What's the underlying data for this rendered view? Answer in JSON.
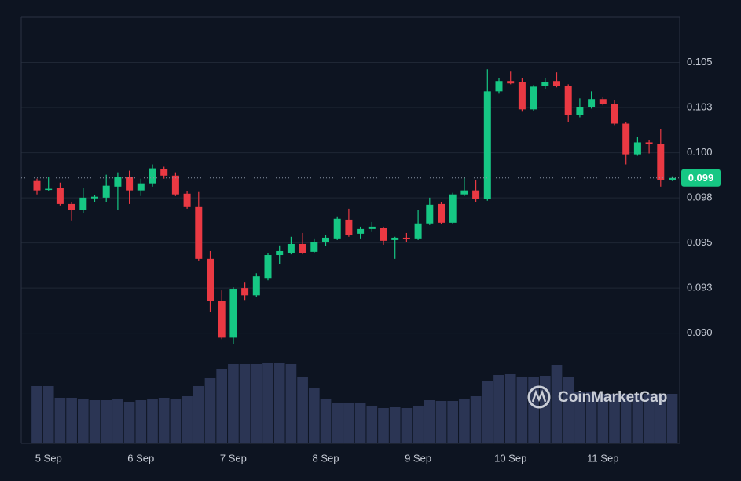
{
  "chart_data": {
    "type": "candlestick",
    "categories": [
      null,
      "5 Sep",
      null,
      null,
      null,
      null,
      null,
      null,
      null,
      "6 Sep",
      null,
      null,
      null,
      null,
      null,
      null,
      null,
      "7 Sep",
      null,
      null,
      null,
      null,
      null,
      null,
      null,
      "8 Sep",
      null,
      null,
      null,
      null,
      null,
      null,
      null,
      "9 Sep",
      null,
      null,
      null,
      null,
      null,
      null,
      null,
      "10 Sep",
      null,
      null,
      null,
      null,
      null,
      null,
      null,
      "11 Sep",
      null,
      null,
      null,
      null,
      null,
      null
    ],
    "open": [
      0.09843,
      0.09795,
      0.09804,
      0.09716,
      0.09682,
      0.09747,
      0.09751,
      0.09812,
      0.09865,
      0.09791,
      0.0983,
      0.09908,
      0.09873,
      0.09773,
      0.09699,
      0.09412,
      0.0918,
      0.08975,
      0.0925,
      0.0921,
      0.09306,
      0.09433,
      0.09446,
      0.09494,
      0.09451,
      0.09507,
      0.09525,
      0.09629,
      0.09551,
      0.09577,
      0.09581,
      0.09516,
      0.09529,
      0.09525,
      0.09608,
      0.09716,
      0.09612,
      0.09769,
      0.09791,
      0.09743,
      0.1034,
      0.10397,
      0.10392,
      0.1024,
      0.10371,
      0.10397,
      0.10371,
      0.10209,
      0.10253,
      0.10297,
      0.10271,
      0.10161,
      0.09991,
      0.10057,
      0.10048,
      0.09847
    ],
    "high": [
      0.09856,
      0.09865,
      0.09834,
      0.09725,
      0.09804,
      0.09765,
      0.09878,
      0.09891,
      0.099,
      0.09856,
      0.09935,
      0.09922,
      0.09891,
      0.09786,
      0.09782,
      0.09455,
      0.09237,
      0.09254,
      0.0928,
      0.09332,
      0.09446,
      0.09486,
      0.09534,
      0.09555,
      0.09525,
      0.09542,
      0.09647,
      0.0969,
      0.0959,
      0.09616,
      0.0959,
      0.09534,
      0.09555,
      0.09682,
      0.09751,
      0.09725,
      0.09778,
      0.09865,
      0.09847,
      0.10462,
      0.10414,
      0.10449,
      0.10414,
      0.10375,
      0.10414,
      0.10445,
      0.10379,
      0.10301,
      0.1034,
      0.1031,
      0.10292,
      0.1017,
      0.10087,
      0.1007,
      0.10131,
      0.09869
    ],
    "low": [
      0.09769,
      0.0979,
      0.09708,
      0.09621,
      0.09664,
      0.09725,
      0.09725,
      0.09682,
      0.09716,
      0.0976,
      0.09812,
      0.09856,
      0.0976,
      0.0969,
      0.09403,
      0.0912,
      0.08967,
      0.0894,
      0.09184,
      0.09202,
      0.09293,
      0.09385,
      0.09437,
      0.09437,
      0.09442,
      0.09481,
      0.09516,
      0.09534,
      0.09525,
      0.0956,
      0.0949,
      0.09412,
      0.09507,
      0.09516,
      0.09599,
      0.09603,
      0.09603,
      0.0976,
      0.09725,
      0.09734,
      0.10327,
      0.10379,
      0.10227,
      0.10231,
      0.10353,
      0.10362,
      0.1017,
      0.10196,
      0.10244,
      0.10262,
      0.10153,
      0.09935,
      0.09983,
      0.09996,
      0.09812,
      0.09843
    ],
    "close": [
      0.09791,
      0.098,
      0.09716,
      0.09682,
      0.09751,
      0.09756,
      0.09817,
      0.09865,
      0.09791,
      0.0983,
      0.09913,
      0.09873,
      0.09769,
      0.09699,
      0.09412,
      0.0918,
      0.08975,
      0.09246,
      0.0921,
      0.09315,
      0.09433,
      0.09455,
      0.09494,
      0.09446,
      0.09503,
      0.09529,
      0.09634,
      0.09542,
      0.09577,
      0.0959,
      0.09512,
      0.09529,
      0.0952,
      0.09608,
      0.09712,
      0.09612,
      0.09769,
      0.09791,
      0.09743,
      0.1034,
      0.10397,
      0.10384,
      0.1024,
      0.10366,
      0.10392,
      0.10371,
      0.10209,
      0.10253,
      0.10297,
      0.10271,
      0.10161,
      0.09991,
      0.10057,
      0.10048,
      0.09847,
      0.0986
    ],
    "volume": [
      73,
      73,
      58,
      58,
      57,
      55,
      55,
      57,
      53,
      55,
      56,
      58,
      57,
      60,
      73,
      83,
      95,
      101,
      101,
      101,
      102,
      102,
      101,
      85,
      71,
      57,
      51,
      51,
      51,
      47,
      45,
      46,
      45,
      48,
      55,
      54,
      54,
      57,
      60,
      80,
      87,
      88,
      85,
      85,
      86,
      100,
      85,
      65,
      65,
      63,
      63,
      63,
      63,
      63,
      63,
      63
    ],
    "up_color": "#16c784",
    "down_color": "#ea3943",
    "volume_color": "#2b3554",
    "ylim": [
      0.0839,
      0.1075
    ],
    "yticks": [
      {
        "value": 0.09,
        "label": "0.090"
      },
      {
        "value": 0.0925,
        "label": "0.093"
      },
      {
        "value": 0.095,
        "label": "0.095"
      },
      {
        "value": 0.0975,
        "label": "0.098"
      },
      {
        "value": 0.1,
        "label": "0.100"
      },
      {
        "value": 0.1025,
        "label": "0.103"
      },
      {
        "value": 0.105,
        "label": "0.105"
      }
    ],
    "grid": true,
    "last_price": 0.0986,
    "last_price_label": "0.099",
    "watermark": "CoinMarketCap"
  }
}
